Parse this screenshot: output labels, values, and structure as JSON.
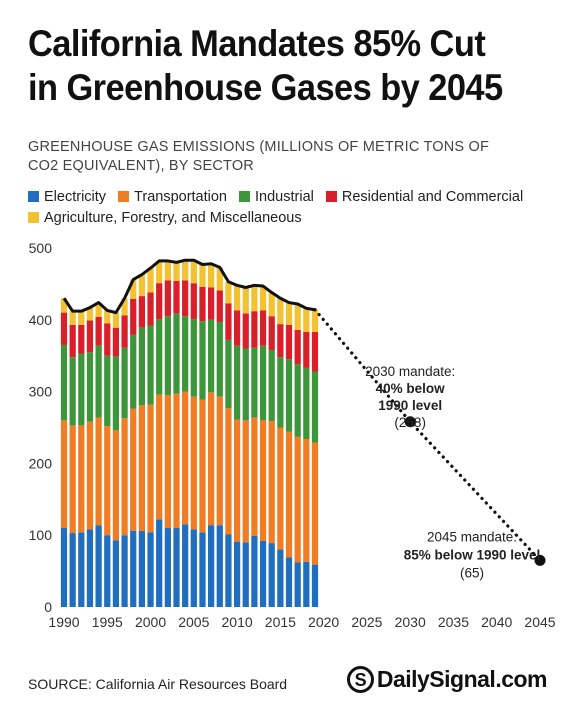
{
  "title_lines": [
    "California Mandates 85% Cut",
    "in Greenhouse Gases by 2045"
  ],
  "subtitle_lines": [
    "GREENHOUSE GAS EMISSIONS (MILLIONS OF METRIC TONS OF",
    "CO2 EQUIVALENT), BY SECTOR"
  ],
  "source": "SOURCE: California Air Resources Board",
  "brand": {
    "logo": "S",
    "text": "DailySignal.com"
  },
  "colors": {
    "Electricity": "#1f6fbe",
    "Transportation": "#f07c24",
    "Industrial": "#3e963b",
    "Residential and Commercial": "#d81f2a",
    "Agriculture, Forestry, and Miscellaneous": "#f2c232",
    "total_line": "#111111",
    "axis_text": "#333333"
  },
  "chart_data": {
    "type": "bar",
    "stacked": true,
    "years": [
      1990,
      1991,
      1992,
      1993,
      1994,
      1995,
      1996,
      1997,
      1998,
      1999,
      2000,
      2001,
      2002,
      2003,
      2004,
      2005,
      2006,
      2007,
      2008,
      2009,
      2010,
      2011,
      2012,
      2013,
      2014,
      2015,
      2016,
      2017,
      2018,
      2019
    ],
    "series": [
      {
        "name": "Electricity",
        "values": [
          110,
          103,
          104,
          108,
          114,
          100,
          93,
          100,
          106,
          106,
          104,
          122,
          110,
          110,
          115,
          108,
          104,
          114,
          114,
          101,
          91,
          90,
          99,
          92,
          89,
          80,
          69,
          62,
          63,
          59
        ]
      },
      {
        "name": "Transportation",
        "values": [
          150,
          150,
          149,
          150,
          150,
          152,
          153,
          163,
          170,
          175,
          178,
          174,
          185,
          187,
          185,
          185,
          185,
          185,
          179,
          176,
          170,
          170,
          165,
          168,
          170,
          170,
          175,
          175,
          171,
          170
        ]
      },
      {
        "name": "Industrial",
        "values": [
          105,
          95,
          100,
          97,
          100,
          98,
          103,
          98,
          103,
          108,
          110,
          105,
          110,
          112,
          105,
          108,
          109,
          101,
          104,
          95,
          103,
          100,
          97,
          104,
          99,
          98,
          101,
          101,
          99,
          99
        ]
      },
      {
        "name": "Residential and Commercial",
        "values": [
          45,
          45,
          40,
          44,
          40,
          45,
          40,
          45,
          50,
          44,
          46,
          50,
          50,
          45,
          50,
          50,
          48,
          45,
          44,
          51,
          49,
          49,
          51,
          49,
          47,
          46,
          48,
          48,
          50,
          55
        ]
      },
      {
        "name": "Agriculture, Forestry, and Miscellaneous",
        "values": [
          20,
          19,
          19,
          18,
          20,
          18,
          21,
          24,
          27,
          30,
          34,
          31,
          27,
          26,
          28,
          32,
          31,
          33,
          32,
          30,
          35,
          36,
          36,
          34,
          33,
          36,
          31,
          36,
          33,
          31
        ]
      }
    ],
    "totals": [
      430,
      412,
      412,
      417,
      424,
      413,
      410,
      430,
      456,
      463,
      472,
      482,
      482,
      480,
      483,
      483,
      477,
      478,
      473,
      453,
      448,
      445,
      448,
      447,
      438,
      430,
      424,
      422,
      416,
      414
    ],
    "mandates": [
      {
        "year": 2030,
        "value": 258,
        "label": "2030 mandate:",
        "bold_lines": [
          "40% below",
          "1990 level"
        ],
        "value_label": "(258)"
      },
      {
        "year": 2045,
        "value": 65,
        "label": "2045 mandate:",
        "bold_lines": [
          "85% below 1990 level"
        ],
        "value_label": "(65)"
      }
    ],
    "x_ticks": [
      1990,
      1995,
      2000,
      2005,
      2010,
      2015,
      2020,
      2025,
      2030,
      2035,
      2040,
      2045
    ],
    "y_ticks": [
      0,
      100,
      200,
      300,
      400,
      500
    ],
    "xlim": [
      1990,
      2045
    ],
    "ylim": [
      0,
      500
    ],
    "legend_position": "top",
    "grid": false
  }
}
